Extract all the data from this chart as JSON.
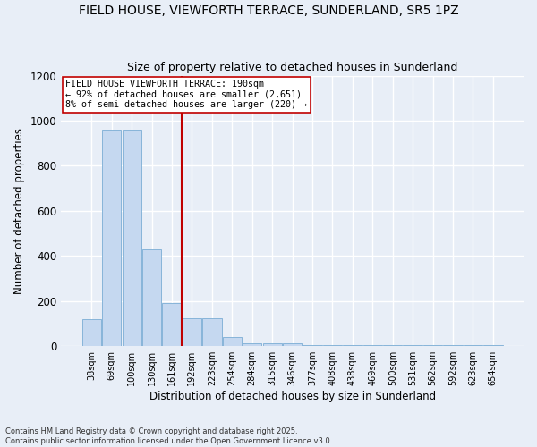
{
  "title_line1": "FIELD HOUSE, VIEWFORTH TERRACE, SUNDERLAND, SR5 1PZ",
  "title_line2": "Size of property relative to detached houses in Sunderland",
  "xlabel": "Distribution of detached houses by size in Sunderland",
  "ylabel": "Number of detached properties",
  "categories": [
    "38sqm",
    "69sqm",
    "100sqm",
    "130sqm",
    "161sqm",
    "192sqm",
    "223sqm",
    "254sqm",
    "284sqm",
    "315sqm",
    "346sqm",
    "377sqm",
    "408sqm",
    "438sqm",
    "469sqm",
    "500sqm",
    "531sqm",
    "562sqm",
    "592sqm",
    "623sqm",
    "654sqm"
  ],
  "values": [
    120,
    960,
    960,
    430,
    190,
    125,
    125,
    40,
    13,
    13,
    13,
    5,
    5,
    5,
    5,
    5,
    5,
    5,
    5,
    5,
    5
  ],
  "bar_color": "#c5d8f0",
  "bar_edge_color": "#7aadd4",
  "vline_color": "#c00000",
  "vline_x_idx": 5,
  "annotation_text": "FIELD HOUSE VIEWFORTH TERRACE: 190sqm\n← 92% of detached houses are smaller (2,651)\n8% of semi-detached houses are larger (220) →",
  "annotation_box_color": "#ffffff",
  "annotation_box_edge": "#c00000",
  "ylim": [
    0,
    1200
  ],
  "yticks": [
    0,
    200,
    400,
    600,
    800,
    1000,
    1200
  ],
  "footer_text": "Contains HM Land Registry data © Crown copyright and database right 2025.\nContains public sector information licensed under the Open Government Licence v3.0.",
  "background_color": "#e8eef7",
  "grid_color": "#ffffff",
  "title_fontsize": 10,
  "subtitle_fontsize": 9,
  "bar_width": 0.95
}
